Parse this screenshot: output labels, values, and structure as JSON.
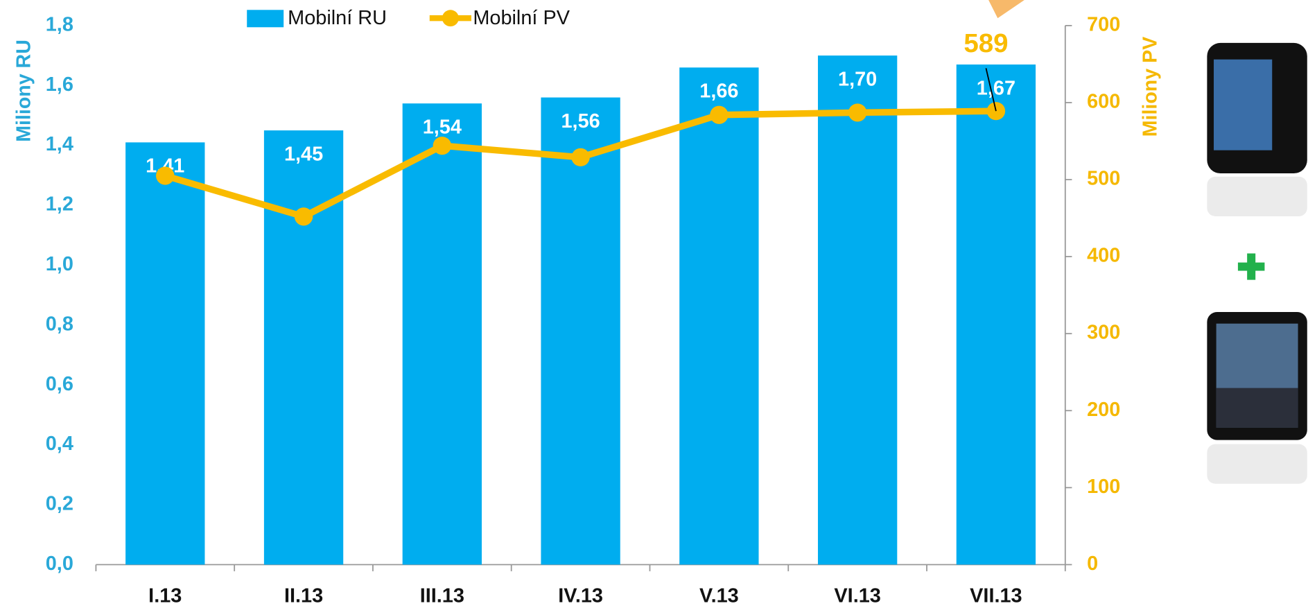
{
  "chart_data": {
    "type": "bar-line",
    "categories": [
      "I.13",
      "II.13",
      "III.13",
      "IV.13",
      "V.13",
      "VI.13",
      "VII.13"
    ],
    "series": [
      {
        "name": "Mobilní RU",
        "color": "#00adef",
        "type": "bar",
        "values": [
          1.41,
          1.45,
          1.54,
          1.56,
          1.66,
          1.7,
          1.67
        ],
        "value_labels": [
          "1,41",
          "1,45",
          "1,54",
          "1,56",
          "1,66",
          "1,70",
          "1,67"
        ]
      },
      {
        "name": "Mobilní PV",
        "color": "#f9bb00",
        "type": "line",
        "axis": "y2",
        "values": [
          505,
          452,
          544,
          529,
          584,
          587,
          589
        ],
        "value_labels": [
          null,
          null,
          null,
          null,
          null,
          null,
          "589"
        ]
      }
    ],
    "y_label": "Miliony RU",
    "y2_label": "Miliony PV",
    "ylim": [
      0,
      1.8
    ],
    "yticks": [
      {
        "value": 0,
        "label": "0,0"
      },
      {
        "value": 0.2,
        "label": "0,2"
      },
      {
        "value": 0.4,
        "label": "0,4"
      },
      {
        "value": 0.6,
        "label": "0,6"
      },
      {
        "value": 0.8,
        "label": "0,8"
      },
      {
        "value": 1.0,
        "label": "1,0"
      },
      {
        "value": 1.2,
        "label": "1,2"
      },
      {
        "value": 1.4,
        "label": "1,4"
      },
      {
        "value": 1.6,
        "label": "1,6"
      },
      {
        "value": 1.8,
        "label": "1,8"
      }
    ],
    "y2lim": [
      0,
      700
    ],
    "y2ticks": [
      0,
      100,
      200,
      300,
      400,
      500,
      600,
      700
    ],
    "grid": false,
    "legend": "top"
  }
}
